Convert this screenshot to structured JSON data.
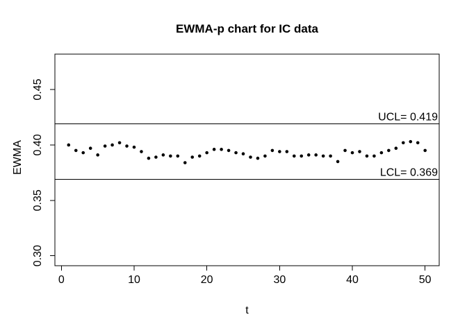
{
  "chart_data": {
    "type": "scatter",
    "title": "EWMA-p chart for IC data",
    "xlabel": "t",
    "ylabel": "EWMA",
    "x": [
      1,
      2,
      3,
      4,
      5,
      6,
      7,
      8,
      9,
      10,
      11,
      12,
      13,
      14,
      15,
      16,
      17,
      18,
      19,
      20,
      21,
      22,
      23,
      24,
      25,
      26,
      27,
      28,
      29,
      30,
      31,
      32,
      33,
      34,
      35,
      36,
      37,
      38,
      39,
      40,
      41,
      42,
      43,
      44,
      45,
      46,
      47,
      48,
      49,
      50
    ],
    "values": [
      0.4,
      0.395,
      0.393,
      0.397,
      0.391,
      0.399,
      0.4,
      0.402,
      0.399,
      0.398,
      0.394,
      0.388,
      0.389,
      0.391,
      0.39,
      0.39,
      0.384,
      0.389,
      0.39,
      0.393,
      0.396,
      0.396,
      0.395,
      0.393,
      0.392,
      0.389,
      0.388,
      0.39,
      0.395,
      0.394,
      0.394,
      0.39,
      0.39,
      0.391,
      0.391,
      0.39,
      0.39,
      0.385,
      0.395,
      0.393,
      0.394,
      0.39,
      0.39,
      0.393,
      0.395,
      0.397,
      0.402,
      0.403,
      0.402,
      0.395
    ],
    "x_ticks": [
      0,
      10,
      20,
      30,
      40,
      50
    ],
    "x_tick_labels": [
      "0",
      "10",
      "20",
      "30",
      "40",
      "50"
    ],
    "y_ticks": [
      0.3,
      0.35,
      0.4,
      0.45
    ],
    "y_tick_labels": [
      "0.30",
      "0.35",
      "0.40",
      "0.45"
    ],
    "xlim": [
      -0.89,
      51.94
    ],
    "ylim": [
      0.291,
      0.482
    ],
    "control_limits": {
      "ucl": {
        "label": "UCL= 0.419",
        "value": 0.419
      },
      "lcl": {
        "label": "LCL= 0.369",
        "value": 0.369
      }
    },
    "grid": false,
    "point_color": "#000000",
    "line_color": "#000000",
    "background_color": "#ffffff"
  }
}
